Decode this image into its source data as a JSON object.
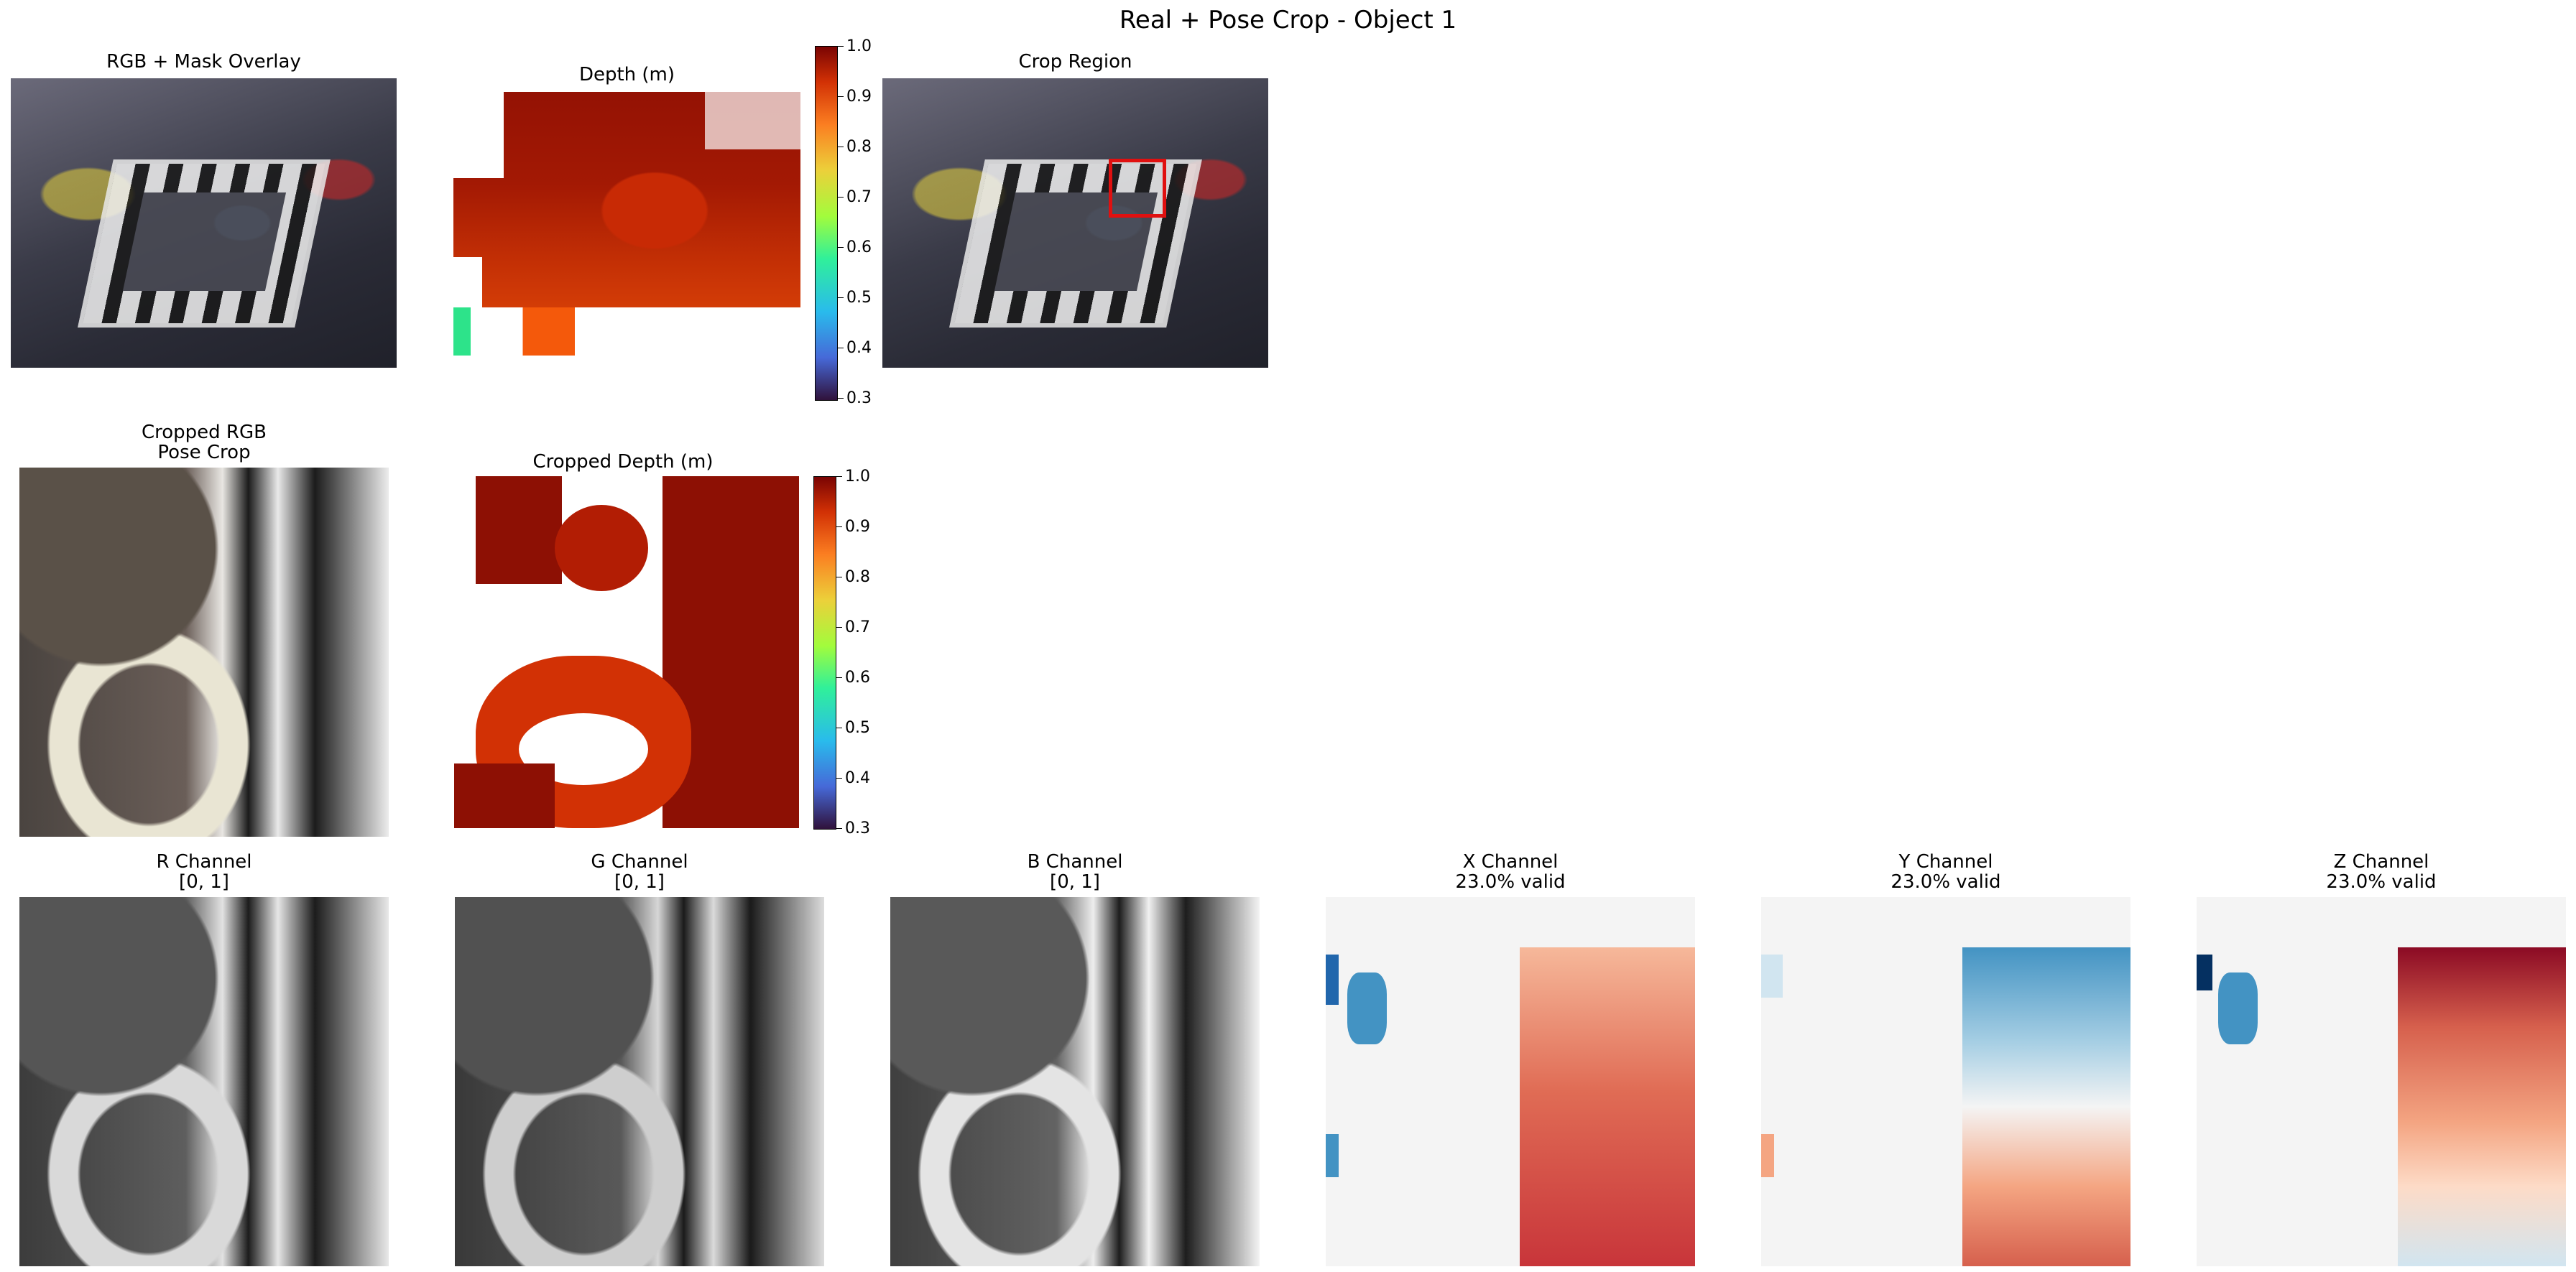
{
  "figure": {
    "title": "Real + Pose Crop - Object 1"
  },
  "panels": {
    "rgb_overlay": {
      "title": "RGB + Mask Overlay"
    },
    "depth": {
      "title": "Depth (m)"
    },
    "crop_region": {
      "title": "Crop Region"
    },
    "cropped_rgb": {
      "title": "Cropped RGB\nPose Crop"
    },
    "cropped_depth": {
      "title": "Cropped Depth (m)"
    },
    "r_channel": {
      "title": "R Channel\n[0, 1]"
    },
    "g_channel": {
      "title": "G Channel\n[0, 1]"
    },
    "b_channel": {
      "title": "B Channel\n[0, 1]"
    },
    "x_channel": {
      "title": "X Channel\n23.0% valid"
    },
    "y_channel": {
      "title": "Y Channel\n23.0% valid"
    },
    "z_channel": {
      "title": "Z Channel\n23.0% valid"
    }
  },
  "colorbar": {
    "ticks": [
      "1.0",
      "0.9",
      "0.8",
      "0.7",
      "0.6",
      "0.5",
      "0.4",
      "0.3"
    ],
    "colormap": "turbo"
  },
  "colors": {
    "crop_box": "#e01010",
    "diverging_cold": "#2166ac",
    "diverging_hot": "#b2182b"
  }
}
